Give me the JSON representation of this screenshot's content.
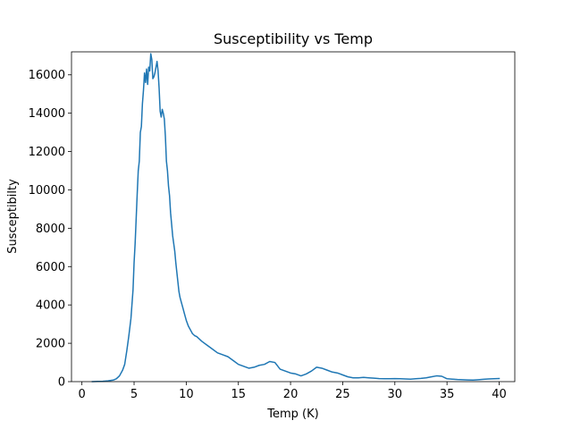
{
  "chart_data": {
    "type": "line",
    "title": "Susceptibility vs Temp",
    "xlabel": "Temp (K)",
    "ylabel": "Susceptibilty",
    "xlim": [
      -1,
      41.5
    ],
    "ylim": [
      0,
      17200
    ],
    "xticks": [
      0,
      5,
      10,
      15,
      20,
      25,
      30,
      35,
      40
    ],
    "yticks": [
      0,
      2000,
      4000,
      6000,
      8000,
      10000,
      12000,
      14000,
      16000
    ],
    "grid": false,
    "legend": "none",
    "series": [
      {
        "color": "#1f77b4",
        "x": [
          1.0,
          1.5,
          2.0,
          2.5,
          3.0,
          3.3,
          3.6,
          3.9,
          4.1,
          4.3,
          4.5,
          4.7,
          4.9,
          5.0,
          5.1,
          5.2,
          5.3,
          5.4,
          5.5,
          5.6,
          5.7,
          5.8,
          5.9,
          6.0,
          6.1,
          6.2,
          6.3,
          6.4,
          6.5,
          6.6,
          6.7,
          6.8,
          6.9,
          7.0,
          7.1,
          7.2,
          7.3,
          7.4,
          7.5,
          7.6,
          7.7,
          7.8,
          7.9,
          8.0,
          8.1,
          8.2,
          8.3,
          8.4,
          8.5,
          8.6,
          8.7,
          8.8,
          8.9,
          9.0,
          9.1,
          9.2,
          9.3,
          9.4,
          9.5,
          9.6,
          9.7,
          9.8,
          9.9,
          10.0,
          10.2,
          10.4,
          10.6,
          10.8,
          11.0,
          11.5,
          12.0,
          12.5,
          13.0,
          13.5,
          14.0,
          14.5,
          15.0,
          15.5,
          16.0,
          16.5,
          17.0,
          17.5,
          18.0,
          18.5,
          19.0,
          19.5,
          20.0,
          20.5,
          21.0,
          21.5,
          22.0,
          22.5,
          23.0,
          23.5,
          24.0,
          24.5,
          25.0,
          25.5,
          26.0,
          26.5,
          27.0,
          27.5,
          28.0,
          28.5,
          29.0,
          29.5,
          30.0,
          30.5,
          31.0,
          31.5,
          32.0,
          32.5,
          33.0,
          33.5,
          34.0,
          34.5,
          35.0,
          35.5,
          36.0,
          36.5,
          37.0,
          37.5,
          38.0,
          38.5,
          39.0,
          39.5,
          40.0
        ],
        "y": [
          0,
          10,
          20,
          40,
          80,
          150,
          300,
          600,
          900,
          1600,
          2400,
          3300,
          4800,
          6200,
          7200,
          8500,
          9800,
          11000,
          11500,
          13000,
          13300,
          14500,
          15200,
          16100,
          15600,
          16300,
          15500,
          16400,
          16200,
          17100,
          16800,
          15800,
          15900,
          16100,
          16400,
          16700,
          16200,
          15300,
          14100,
          13800,
          14200,
          14000,
          13700,
          12800,
          11500,
          11000,
          10200,
          9700,
          8800,
          8200,
          7600,
          7200,
          6800,
          6200,
          5700,
          5200,
          4700,
          4400,
          4200,
          4000,
          3800,
          3600,
          3400,
          3200,
          2900,
          2700,
          2500,
          2400,
          2350,
          2100,
          1900,
          1700,
          1500,
          1400,
          1300,
          1100,
          900,
          800,
          700,
          750,
          850,
          900,
          1050,
          1000,
          650,
          550,
          450,
          400,
          300,
          400,
          550,
          750,
          700,
          600,
          500,
          450,
          350,
          250,
          200,
          200,
          220,
          200,
          180,
          160,
          150,
          150,
          160,
          150,
          140,
          130,
          150,
          170,
          200,
          250,
          300,
          280,
          150,
          130,
          110,
          100,
          90,
          80,
          100,
          120,
          140,
          150,
          160
        ]
      }
    ]
  }
}
